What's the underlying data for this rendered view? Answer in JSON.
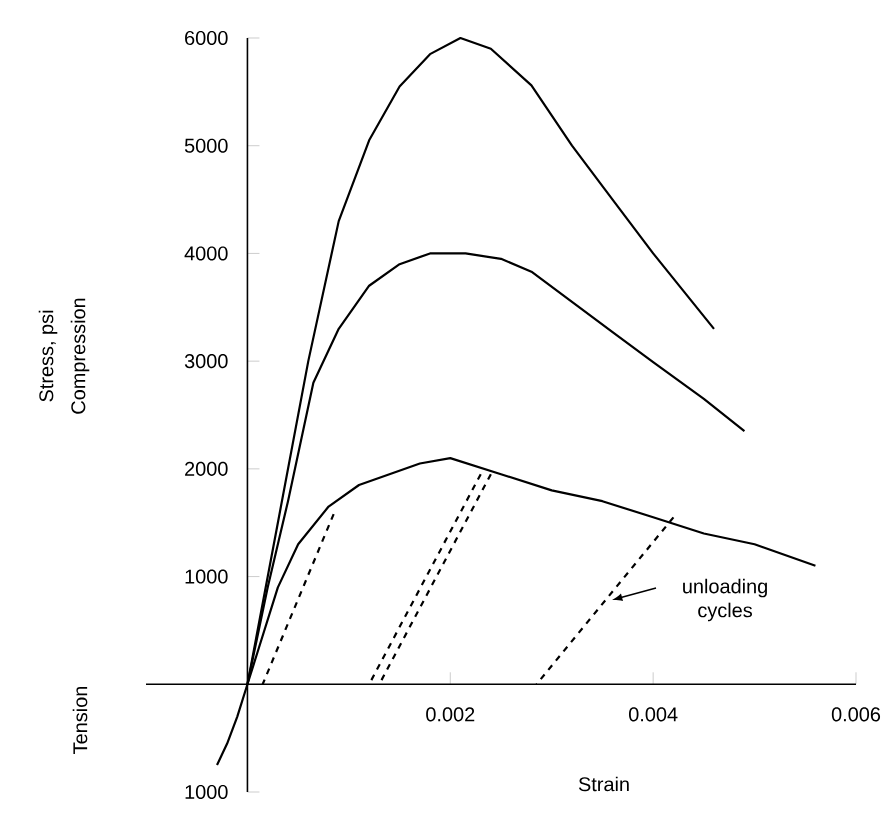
{
  "chart_data": {
    "type": "line",
    "xlabel": "Strain",
    "ylabel": "Stress, psi",
    "marker": "none",
    "xlim": [
      -0.001,
      0.006
    ],
    "ylim": [
      -1000,
      6000
    ],
    "xticks": [
      0.002,
      0.004,
      0.006
    ],
    "yticks": [
      {
        "value": -1000,
        "label": "1000"
      },
      1000,
      2000,
      3000,
      4000,
      5000,
      6000
    ],
    "series": [
      {
        "color": "#000000",
        "line_style": "solid",
        "x": [
          0,
          0.0003,
          0.0006,
          0.0009,
          0.0012,
          0.0015,
          0.0018,
          0.0021,
          0.0024,
          0.0028,
          0.0032,
          0.0036,
          0.004,
          0.0043,
          0.0046
        ],
        "values": [
          0,
          1500,
          3000,
          4300,
          5050,
          5550,
          5850,
          6000,
          5900,
          5560,
          5000,
          4500,
          4000,
          3650,
          3300
        ]
      },
      {
        "color": "#000000",
        "line_style": "solid",
        "x": [
          0,
          0.0002,
          0.0004,
          0.00065,
          0.0009,
          0.0012,
          0.0015,
          0.0018,
          0.00215,
          0.0025,
          0.0028,
          0.0032,
          0.0036,
          0.004,
          0.0045,
          0.0049
        ],
        "values": [
          0,
          900,
          1700,
          2800,
          3300,
          3700,
          3900,
          4000,
          4000,
          3950,
          3830,
          3550,
          3270,
          2990,
          2650,
          2350
        ]
      },
      {
        "color": "#000000",
        "line_style": "solid",
        "x": [
          -0.0003,
          -0.0002,
          -0.0001,
          0,
          0.0001,
          0.0003,
          0.0005,
          0.0008,
          0.0011,
          0.0014,
          0.0017,
          0.002,
          0.0025,
          0.003,
          0.0035,
          0.004,
          0.0045,
          0.005,
          0.0056
        ],
        "values": [
          -750,
          -550,
          -300,
          0,
          300,
          900,
          1300,
          1650,
          1850,
          1950,
          2050,
          2100,
          1950,
          1800,
          1700,
          1550,
          1400,
          1300,
          1100
        ]
      },
      {
        "color": "#000000",
        "line_style": "dashed",
        "x": [
          0.00085,
          0.00015
        ],
        "values": [
          1580,
          0
        ]
      },
      {
        "color": "#000000",
        "line_style": "dashed",
        "x": [
          0.0023,
          0.0012
        ],
        "values": [
          1950,
          0
        ]
      },
      {
        "color": "#000000",
        "line_style": "dashed",
        "x": [
          0.0024,
          0.0013
        ],
        "values": [
          1950,
          0
        ]
      },
      {
        "color": "#000000",
        "line_style": "dashed",
        "x": [
          0.0042,
          0.00285
        ],
        "values": [
          1550,
          0
        ]
      }
    ],
    "annotations": [
      "unloading cycles",
      "Compression",
      "Tension"
    ]
  }
}
